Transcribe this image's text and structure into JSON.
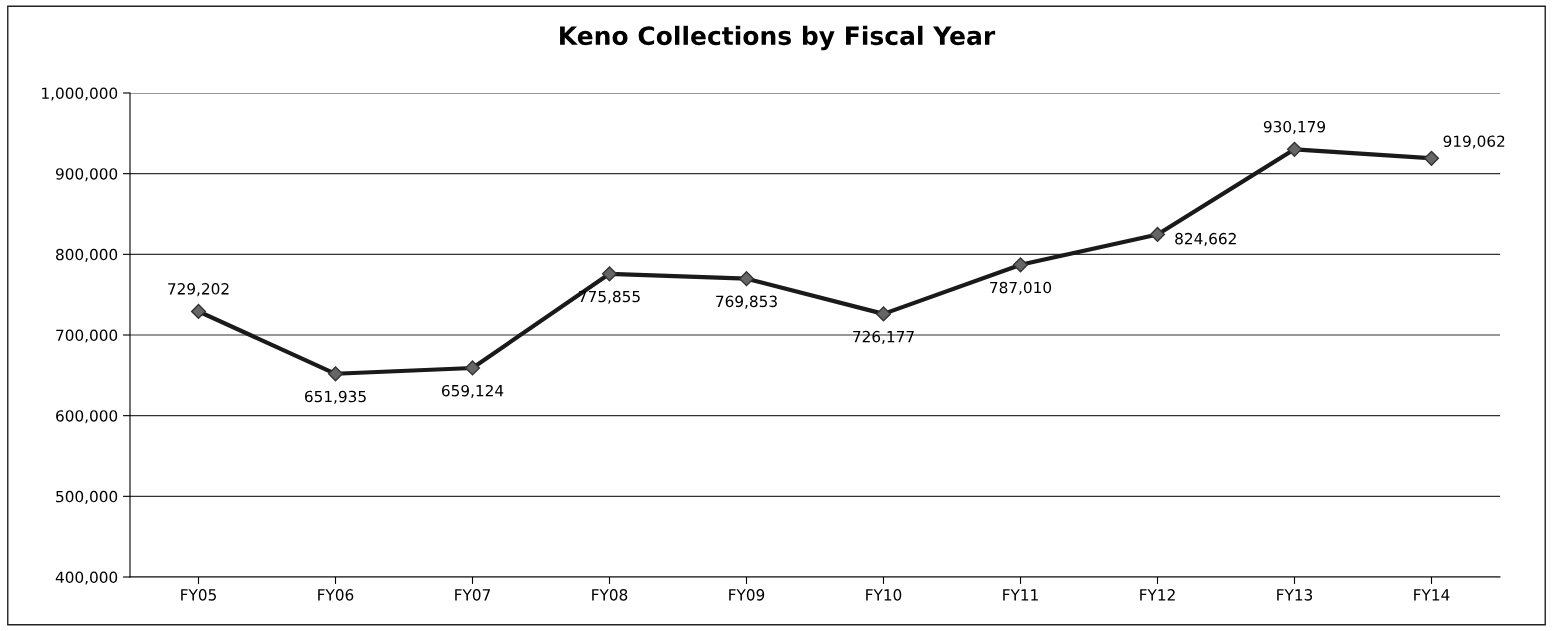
{
  "chart_data": {
    "type": "line",
    "title": "Keno Collections by Fiscal Year",
    "categories": [
      "FY05",
      "FY06",
      "FY07",
      "FY08",
      "FY09",
      "FY10",
      "FY11",
      "FY12",
      "FY13",
      "FY14"
    ],
    "series": [
      {
        "color": "#1a1a1a",
        "values": [
          729202,
          651935,
          659124,
          775855,
          769853,
          726177,
          787010,
          824662,
          930179,
          919062
        ],
        "value_labels": [
          "729,202",
          "651,935",
          "659,124",
          "775,855",
          "769,853",
          "726,177",
          "787,010",
          "824,662",
          "930,179",
          "919,062"
        ]
      }
    ],
    "ylim": [
      400000,
      1000000
    ],
    "yticks": [
      {
        "value": 400000,
        "label": "400,000"
      },
      {
        "value": 500000,
        "label": "500,000"
      },
      {
        "value": 600000,
        "label": "600,000"
      },
      {
        "value": 700000,
        "label": "700,000"
      },
      {
        "value": 800000,
        "label": "800,000"
      },
      {
        "value": 900000,
        "label": "900,000"
      },
      {
        "value": 1000000,
        "label": "1,000,000"
      }
    ],
    "grid": "y",
    "marker": "diamond",
    "line_style": "solid"
  }
}
